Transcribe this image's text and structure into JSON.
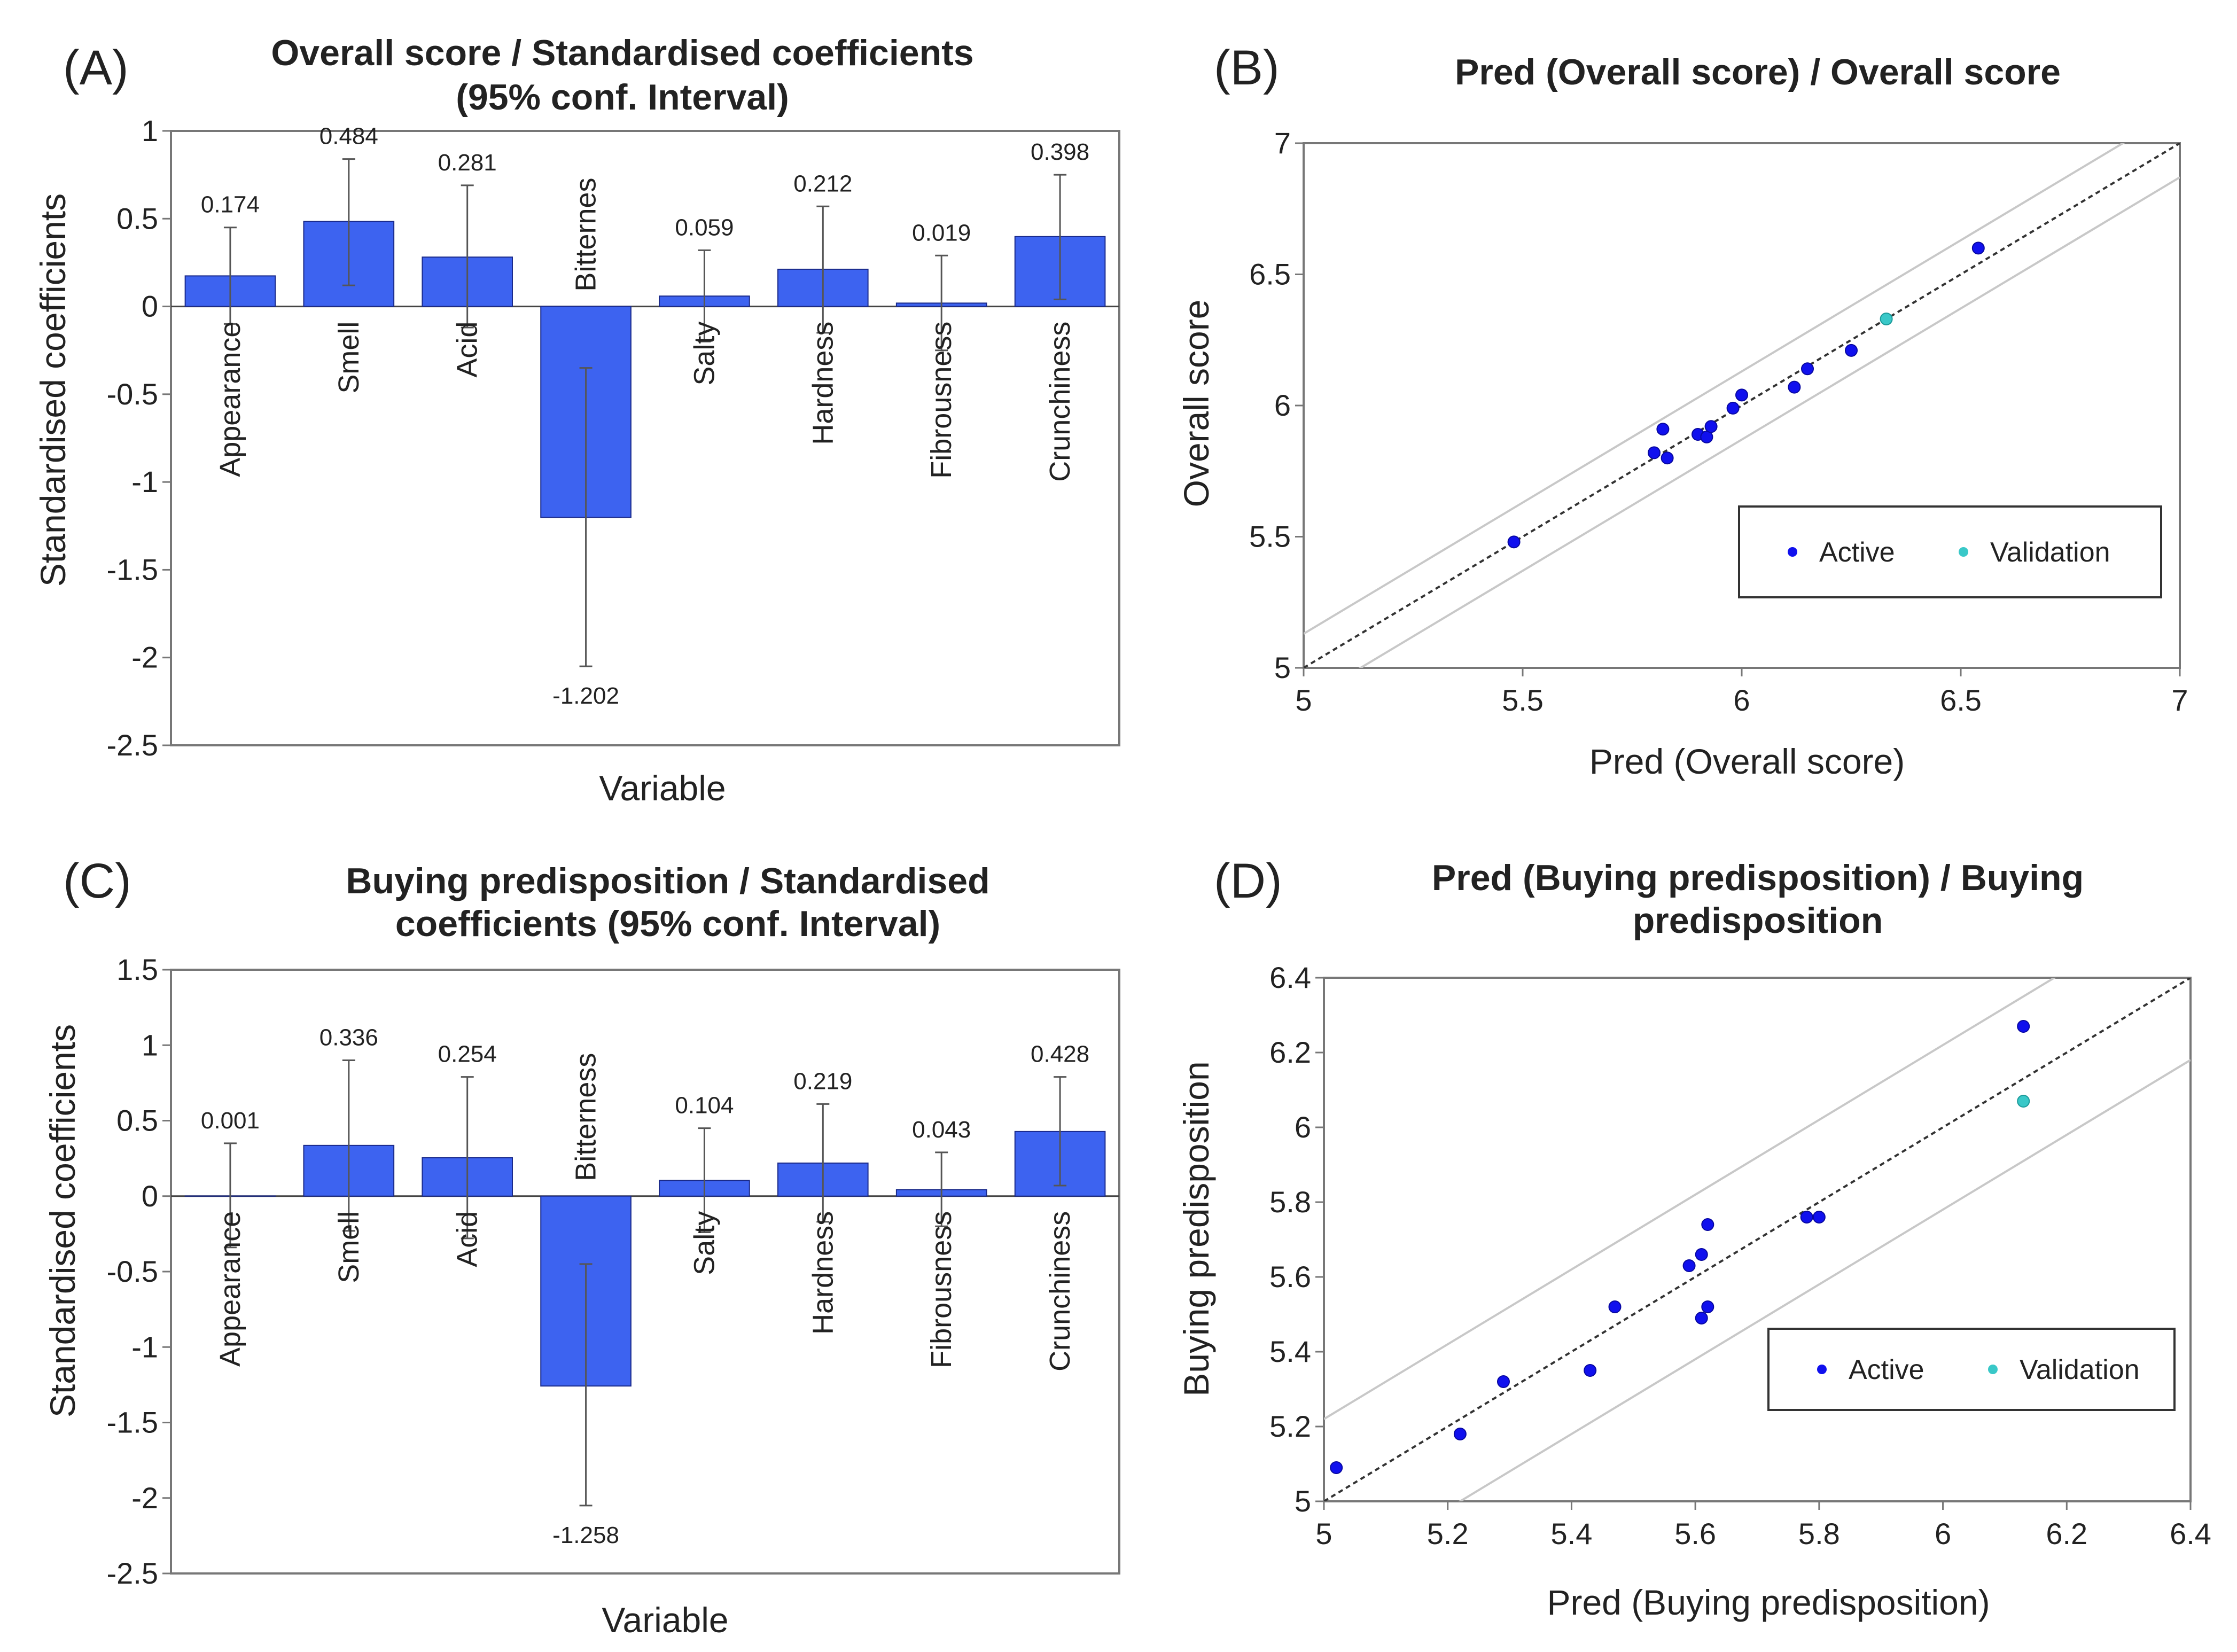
{
  "colors": {
    "bar": "#3d63f0",
    "bar_stroke": "#1a2a8a",
    "active": "#1010ee",
    "validation": "#39c8c8",
    "ref_line": "#333333",
    "band": "#c8c8c8",
    "frame": "#777777"
  },
  "chart_data": [
    {
      "panel": "(A)",
      "type": "bar",
      "title": [
        "Overall score / Standardised coefficients",
        "(95% conf. Interval)"
      ],
      "xlabel": "Variable",
      "ylabel": "Standardised coefficients",
      "ylim": [
        -2.5,
        1
      ],
      "yticks": [
        1,
        0.5,
        0,
        -0.5,
        -1,
        -1.5,
        -2,
        -2.5
      ],
      "ytick_labels": [
        "1",
        "0.5",
        "0",
        "-0.5",
        "-1",
        "-1.5",
        "-2",
        "-2.5"
      ],
      "categories": [
        "Appearance",
        "Smell",
        "Acid",
        "Bitternes",
        "Salty",
        "Hardness",
        "Fibrousness",
        "Crunchiness"
      ],
      "values": [
        0.174,
        0.484,
        0.281,
        -1.202,
        0.059,
        0.212,
        0.019,
        0.398
      ],
      "value_labels": [
        "0.174",
        "0.484",
        "0.281",
        "-1.202",
        "0.059",
        "0.212",
        "0.019",
        "0.398"
      ],
      "ci_low": [
        -0.1,
        0.12,
        -0.12,
        -2.05,
        -0.2,
        -0.15,
        -0.25,
        0.04
      ],
      "ci_high": [
        0.45,
        0.84,
        0.69,
        -0.35,
        0.32,
        0.57,
        0.29,
        0.75
      ]
    },
    {
      "panel": "(B)",
      "type": "scatter",
      "title": [
        "Pred (Overall score) / Overall score"
      ],
      "xlabel": "Pred (Overall score)",
      "ylabel": "Overall score",
      "xlim": [
        5,
        7
      ],
      "ylim": [
        5,
        7
      ],
      "xticks": [
        5,
        5.5,
        6,
        6.5,
        7
      ],
      "xtick_labels": [
        "5",
        "5.5",
        "6",
        "6.5",
        "7"
      ],
      "yticks": [
        5,
        5.5,
        6,
        6.5,
        7
      ],
      "ytick_labels": [
        "5",
        "5.5",
        "6",
        "6.5",
        "7"
      ],
      "band_offset": 0.13,
      "legend": {
        "active": "Active",
        "validation": "Validation",
        "position": "bottom-right"
      },
      "series": [
        {
          "name": "Active",
          "points": [
            [
              5.48,
              5.48
            ],
            [
              5.8,
              5.82
            ],
            [
              5.82,
              5.91
            ],
            [
              5.83,
              5.8
            ],
            [
              5.9,
              5.89
            ],
            [
              5.92,
              5.88
            ],
            [
              5.93,
              5.92
            ],
            [
              5.98,
              5.99
            ],
            [
              6.0,
              6.04
            ],
            [
              6.12,
              6.07
            ],
            [
              6.15,
              6.14
            ],
            [
              6.25,
              6.21
            ],
            [
              6.54,
              6.6
            ]
          ]
        },
        {
          "name": "Validation",
          "points": [
            [
              6.33,
              6.33
            ]
          ]
        }
      ]
    },
    {
      "panel": "(C)",
      "type": "bar",
      "title": [
        "Buying predisposition / Standardised",
        "coefficients (95% conf. Interval)"
      ],
      "xlabel": "Variable",
      "ylabel": "Standardised coefficients",
      "ylim": [
        -2.5,
        1.5
      ],
      "yticks": [
        1.5,
        1,
        0.5,
        0,
        -0.5,
        -1,
        -1.5,
        -2,
        -2.5
      ],
      "ytick_labels": [
        "1.5",
        "1",
        "0.5",
        "0",
        "-0.5",
        "-1",
        "-1.5",
        "-2",
        "-2.5"
      ],
      "categories": [
        "Appearance",
        "Smell",
        "Acid",
        "Bitterness",
        "Salty",
        "Hardness",
        "Fibrousness",
        "Crunchiness"
      ],
      "values": [
        0.001,
        0.336,
        0.254,
        -1.258,
        0.104,
        0.219,
        0.043,
        0.428
      ],
      "value_labels": [
        "0.001",
        "0.336",
        "0.254",
        "-1.258",
        "0.104",
        "0.219",
        "0.043",
        "0.428"
      ],
      "ci_low": [
        -0.34,
        -0.23,
        -0.28,
        -2.05,
        -0.24,
        -0.17,
        -0.2,
        0.07
      ],
      "ci_high": [
        0.35,
        0.9,
        0.79,
        -0.45,
        0.45,
        0.61,
        0.29,
        0.79
      ]
    },
    {
      "panel": "(D)",
      "type": "scatter",
      "title": [
        "Pred (Buying predisposition) / Buying",
        "predisposition"
      ],
      "xlabel": "Pred (Buying predisposition)",
      "ylabel": "Buying predisposition",
      "xlim": [
        5,
        6.4
      ],
      "ylim": [
        5,
        6.4
      ],
      "xticks": [
        5,
        5.2,
        5.4,
        5.6,
        5.8,
        6,
        6.2,
        6.4
      ],
      "xtick_labels": [
        "5",
        "5.2",
        "5.4",
        "5.6",
        "5.8",
        "6",
        "6.2",
        "6.4"
      ],
      "yticks": [
        5,
        5.2,
        5.4,
        5.6,
        5.8,
        6,
        6.2,
        6.4
      ],
      "ytick_labels": [
        "5",
        "5.2",
        "5.4",
        "5.6",
        "5.8",
        "6",
        "6.2",
        "6.4"
      ],
      "band_offset": 0.22,
      "legend": {
        "active": "Active",
        "validation": "Validation",
        "position": "bottom-right"
      },
      "series": [
        {
          "name": "Active",
          "points": [
            [
              5.02,
              5.09
            ],
            [
              5.22,
              5.18
            ],
            [
              5.29,
              5.32
            ],
            [
              5.43,
              5.35
            ],
            [
              5.47,
              5.52
            ],
            [
              5.59,
              5.63
            ],
            [
              5.61,
              5.49
            ],
            [
              5.61,
              5.66
            ],
            [
              5.62,
              5.52
            ],
            [
              5.62,
              5.74
            ],
            [
              5.78,
              5.76
            ],
            [
              5.8,
              5.76
            ],
            [
              6.13,
              6.27
            ]
          ]
        },
        {
          "name": "Validation",
          "points": [
            [
              6.13,
              6.07
            ]
          ]
        }
      ]
    }
  ]
}
